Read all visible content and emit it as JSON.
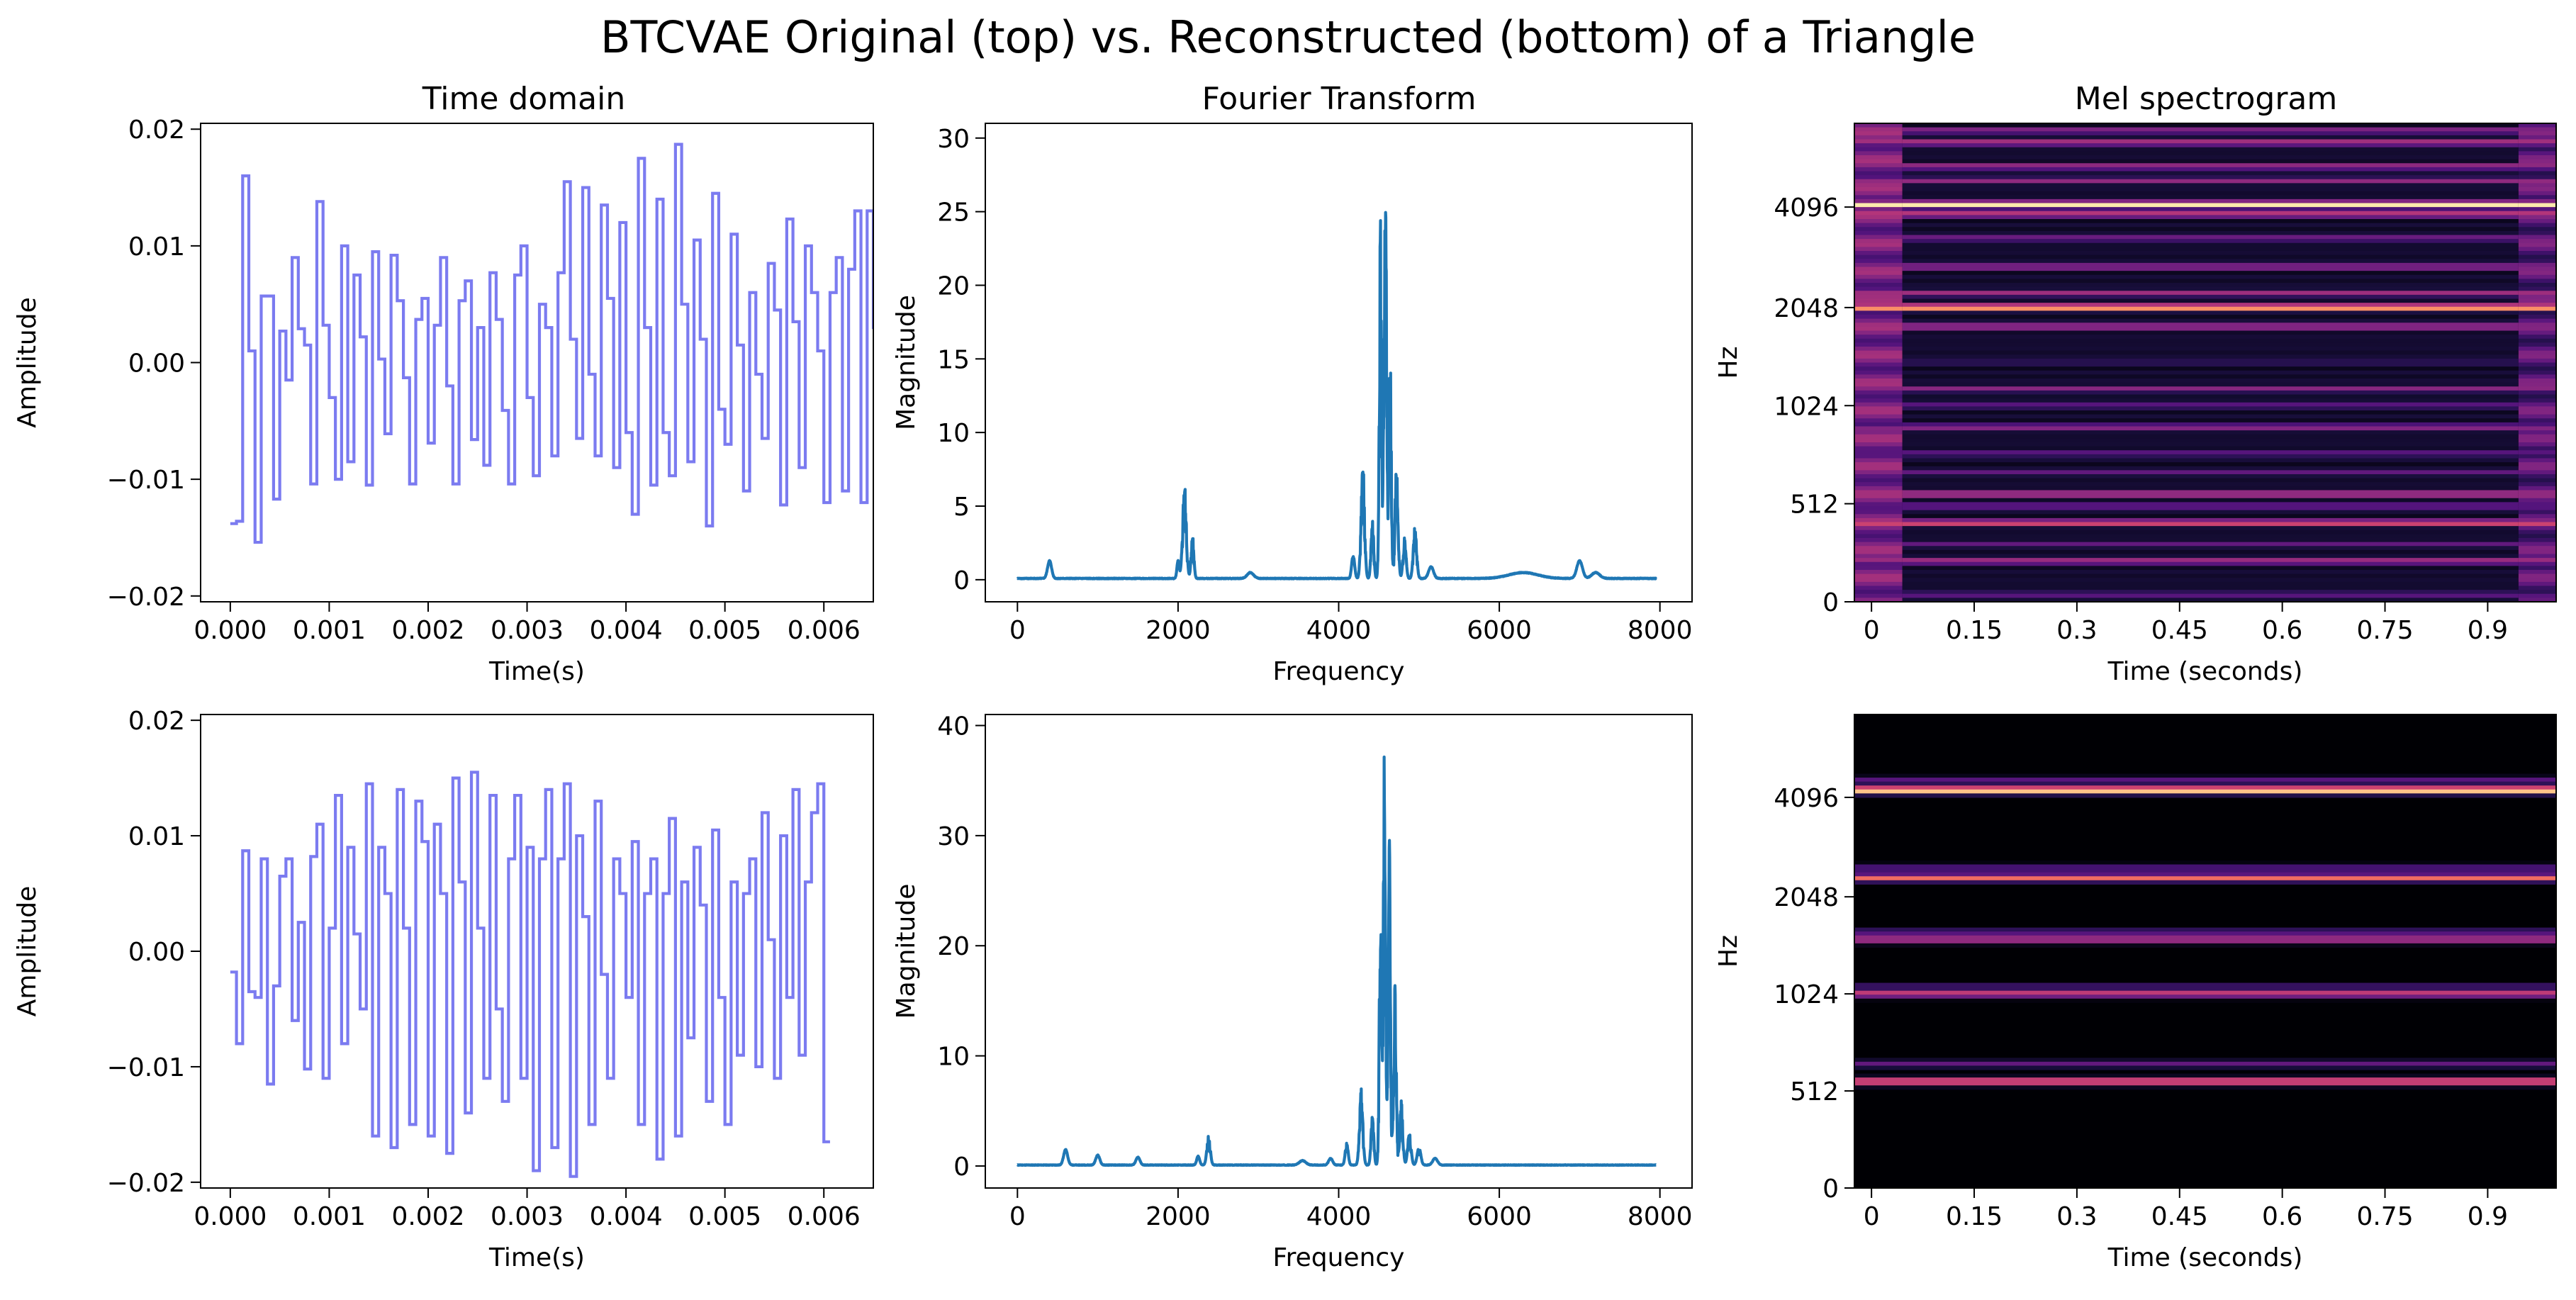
{
  "figure": {
    "suptitle": "BTCVAE Original (top) vs. Reconstructed (bottom) of a Triangle",
    "column_titles": [
      "Time domain",
      "Fourier Transform",
      "Mel spectrogram"
    ]
  },
  "chart_data": [
    {
      "type": "line",
      "role": "time-domain",
      "row": "original",
      "title": "Time domain",
      "xlabel": "Time(s)",
      "ylabel": "Amplitude",
      "xlim": [
        -0.0003,
        0.0065
      ],
      "ylim": [
        -0.0205,
        0.0205
      ],
      "xticks": [
        0.0,
        0.001,
        0.002,
        0.003,
        0.004,
        0.005,
        0.006
      ],
      "xtick_labels": [
        "0.000",
        "0.001",
        "0.002",
        "0.003",
        "0.004",
        "0.005",
        "0.006"
      ],
      "yticks": [
        -0.02,
        -0.01,
        0.0,
        0.01,
        0.02
      ],
      "ytick_labels": [
        "−0.02",
        "−0.01",
        "0.00",
        "0.01",
        "0.02"
      ],
      "color": "#7b7bf0",
      "drawstyle": "steps",
      "sample_rate": 16000,
      "y": [
        -0.0138,
        -0.0136,
        0.016,
        0.001,
        -0.0154,
        0.0057,
        0.0057,
        -0.0117,
        0.0027,
        -0.0015,
        0.009,
        0.0029,
        0.0015,
        -0.0104,
        0.0138,
        0.0032,
        -0.003,
        -0.01,
        0.01,
        -0.0085,
        0.0075,
        0.0022,
        -0.0105,
        0.0095,
        0.0003,
        -0.0061,
        0.0092,
        0.0053,
        -0.0013,
        -0.0104,
        0.0037,
        0.0055,
        -0.0069,
        0.0032,
        0.009,
        -0.002,
        -0.0104,
        0.0053,
        0.007,
        -0.0066,
        0.003,
        -0.0088,
        0.0077,
        0.0037,
        -0.0041,
        -0.0104,
        0.0075,
        0.01,
        -0.003,
        -0.0097,
        0.005,
        0.003,
        -0.008,
        0.0077,
        0.0155,
        0.002,
        -0.0065,
        0.015,
        -0.001,
        -0.008,
        0.0135,
        0.0055,
        -0.009,
        0.012,
        -0.006,
        -0.013,
        0.0175,
        0.003,
        -0.0105,
        0.014,
        -0.006,
        -0.0097,
        0.0187,
        0.005,
        -0.0085,
        0.0105,
        0.002,
        -0.014,
        0.0145,
        -0.004,
        -0.007,
        0.011,
        0.0015,
        -0.011,
        0.006,
        -0.001,
        -0.0065,
        0.0085,
        0.0045,
        -0.0122,
        0.0123,
        0.0035,
        -0.009,
        0.01,
        0.006,
        0.001,
        -0.012,
        0.006,
        0.009,
        -0.011,
        0.008,
        0.013,
        -0.012,
        0.013,
        0.003,
        -0.013,
        0.0065,
        0.0155
      ]
    },
    {
      "type": "line",
      "role": "fourier",
      "row": "original",
      "title": "Fourier Transform",
      "xlabel": "Frequency",
      "ylabel": "Magnitude",
      "xlim": [
        -400,
        8400
      ],
      "ylim": [
        -1.5,
        31
      ],
      "xticks": [
        0,
        2000,
        4000,
        6000,
        8000
      ],
      "xtick_labels": [
        "0",
        "2000",
        "4000",
        "6000",
        "8000"
      ],
      "yticks": [
        0,
        5,
        10,
        15,
        20,
        25,
        30
      ],
      "ytick_labels": [
        "0",
        "5",
        "10",
        "15",
        "20",
        "25",
        "30"
      ],
      "color": "#1f77b4",
      "x_max": 7950,
      "peaks": [
        [
          400,
          1.2,
          25
        ],
        [
          2080,
          6.6,
          22
        ],
        [
          2000,
          1.2,
          14
        ],
        [
          2180,
          3.0,
          16
        ],
        [
          2900,
          0.4,
          40
        ],
        [
          4180,
          1.6,
          18
        ],
        [
          4300,
          8.6,
          20
        ],
        [
          4420,
          4.2,
          16
        ],
        [
          4520,
          24.5,
          14
        ],
        [
          4580,
          29.3,
          16
        ],
        [
          4640,
          17.0,
          14
        ],
        [
          4720,
          8.0,
          18
        ],
        [
          4820,
          2.8,
          18
        ],
        [
          4950,
          3.6,
          20
        ],
        [
          5150,
          0.8,
          30
        ],
        [
          6300,
          0.4,
          180
        ],
        [
          7000,
          1.2,
          35
        ],
        [
          7200,
          0.4,
          50
        ]
      ]
    },
    {
      "type": "heatmap",
      "role": "mel",
      "row": "original",
      "title": "Mel spectrogram",
      "xlabel": "Time (seconds)",
      "ylabel": "Hz",
      "xlim": [
        -0.025,
        1.0
      ],
      "xticks": [
        0,
        0.15,
        0.3,
        0.45,
        0.6,
        0.75,
        0.9
      ],
      "xtick_labels": [
        "0",
        "0.15",
        "0.3",
        "0.45",
        "0.6",
        "0.75",
        "0.9"
      ],
      "yticks": [
        0,
        512,
        1024,
        2048,
        4096
      ],
      "ytick_labels": [
        "0",
        "512",
        "1024",
        "2048",
        "4096"
      ],
      "y_fraction_ticks": [
        0.0,
        0.205,
        0.41,
        0.615,
        0.825
      ],
      "colormap": "magma",
      "onset_edge": 0.045,
      "offset_edge": 0.945,
      "bands": [
        [
          0.015,
          0.3
        ],
        [
          0.085,
          0.48
        ],
        [
          0.12,
          0.3
        ],
        [
          0.165,
          0.62
        ],
        [
          0.2,
          0.35
        ],
        [
          0.225,
          0.55
        ],
        [
          0.27,
          0.3
        ],
        [
          0.31,
          0.3
        ],
        [
          0.365,
          0.42
        ],
        [
          0.41,
          0.3
        ],
        [
          0.445,
          0.4
        ],
        [
          0.5,
          0.2
        ],
        [
          0.575,
          0.5
        ],
        [
          0.615,
          0.85
        ],
        [
          0.645,
          0.45
        ],
        [
          0.7,
          0.45
        ],
        [
          0.76,
          0.35
        ],
        [
          0.81,
          0.55
        ],
        [
          0.83,
          0.97
        ],
        [
          0.88,
          0.42
        ],
        [
          0.91,
          0.45
        ],
        [
          0.96,
          0.5
        ],
        [
          0.985,
          0.4
        ]
      ]
    },
    {
      "type": "line",
      "role": "time-domain",
      "row": "reconstructed",
      "xlabel": "Time(s)",
      "ylabel": "Amplitude",
      "xlim": [
        -0.0003,
        0.0065
      ],
      "ylim": [
        -0.0205,
        0.0205
      ],
      "xticks": [
        0.0,
        0.001,
        0.002,
        0.003,
        0.004,
        0.005,
        0.006
      ],
      "xtick_labels": [
        "0.000",
        "0.001",
        "0.002",
        "0.003",
        "0.004",
        "0.005",
        "0.006"
      ],
      "yticks": [
        -0.02,
        -0.01,
        0.0,
        0.01,
        0.02
      ],
      "ytick_labels": [
        "−0.02",
        "−0.01",
        "0.00",
        "0.01",
        "0.02"
      ],
      "color": "#7b7bf0",
      "drawstyle": "steps",
      "sample_rate": 16000,
      "y": [
        -0.0018,
        -0.008,
        0.0087,
        -0.0035,
        -0.004,
        0.008,
        -0.0115,
        -0.003,
        0.0065,
        0.008,
        -0.006,
        0.0025,
        -0.0102,
        0.0082,
        0.011,
        -0.011,
        0.002,
        0.0135,
        -0.008,
        0.009,
        0.0015,
        -0.005,
        0.0145,
        -0.016,
        0.009,
        0.005,
        -0.017,
        0.014,
        0.002,
        -0.015,
        0.013,
        0.0095,
        -0.016,
        0.011,
        0.005,
        -0.0175,
        0.015,
        0.006,
        -0.014,
        0.0155,
        0.002,
        -0.011,
        0.0135,
        -0.005,
        -0.013,
        0.008,
        0.0135,
        -0.011,
        0.009,
        -0.019,
        0.008,
        0.014,
        -0.017,
        0.008,
        0.0145,
        -0.0195,
        0.01,
        0.003,
        -0.015,
        0.013,
        -0.002,
        -0.011,
        0.008,
        0.005,
        -0.004,
        0.0095,
        -0.015,
        0.005,
        0.008,
        -0.018,
        0.005,
        0.0115,
        -0.016,
        0.006,
        -0.0075,
        0.009,
        0.004,
        -0.013,
        0.0105,
        -0.004,
        -0.015,
        0.006,
        -0.009,
        0.005,
        0.008,
        -0.01,
        0.012,
        0.001,
        -0.011,
        0.01,
        -0.004,
        0.014,
        -0.009,
        0.006,
        0.012,
        0.0145,
        -0.0165
      ]
    },
    {
      "type": "line",
      "role": "fourier",
      "row": "reconstructed",
      "xlabel": "Frequency",
      "ylabel": "Magnitude",
      "xlim": [
        -400,
        8400
      ],
      "ylim": [
        -2,
        41
      ],
      "xticks": [
        0,
        2000,
        4000,
        6000,
        8000
      ],
      "xtick_labels": [
        "0",
        "2000",
        "4000",
        "6000",
        "8000"
      ],
      "yticks": [
        0,
        10,
        20,
        30,
        40
      ],
      "ytick_labels": [
        "0",
        "10",
        "20",
        "30",
        "40"
      ],
      "color": "#1f77b4",
      "x_max": 7950,
      "peaks": [
        [
          600,
          1.4,
          25
        ],
        [
          1000,
          0.9,
          25
        ],
        [
          1500,
          0.7,
          25
        ],
        [
          2250,
          0.8,
          18
        ],
        [
          2380,
          2.8,
          20
        ],
        [
          3550,
          0.4,
          40
        ],
        [
          3900,
          0.6,
          25
        ],
        [
          4100,
          2.0,
          18
        ],
        [
          4280,
          7.0,
          20
        ],
        [
          4420,
          5.0,
          16
        ],
        [
          4520,
          25.0,
          14
        ],
        [
          4570,
          38.5,
          14
        ],
        [
          4630,
          30.0,
          14
        ],
        [
          4700,
          17.0,
          16
        ],
        [
          4780,
          6.0,
          18
        ],
        [
          4880,
          3.0,
          20
        ],
        [
          5000,
          1.6,
          22
        ],
        [
          5200,
          0.6,
          30
        ]
      ]
    },
    {
      "type": "heatmap",
      "role": "mel",
      "row": "reconstructed",
      "xlabel": "Time (seconds)",
      "ylabel": "Hz",
      "xlim": [
        -0.025,
        1.0
      ],
      "xticks": [
        0,
        0.15,
        0.3,
        0.45,
        0.6,
        0.75,
        0.9
      ],
      "xtick_labels": [
        "0",
        "0.15",
        "0.3",
        "0.45",
        "0.6",
        "0.75",
        "0.9"
      ],
      "yticks": [
        0,
        512,
        1024,
        2048,
        4096
      ],
      "ytick_labels": [
        "0",
        "512",
        "1024",
        "2048",
        "4096"
      ],
      "y_fraction_ticks": [
        0.0,
        0.205,
        0.41,
        0.615,
        0.825
      ],
      "colormap": "magma",
      "onset_edge": 0.0,
      "offset_edge": 1.0,
      "bands": [
        [
          0.225,
          0.72
        ],
        [
          0.262,
          0.3
        ],
        [
          0.41,
          0.58
        ],
        [
          0.425,
          0.25
        ],
        [
          0.525,
          0.55
        ],
        [
          0.54,
          0.3
        ],
        [
          0.655,
          0.7
        ],
        [
          0.675,
          0.3
        ],
        [
          0.84,
          0.98
        ],
        [
          0.86,
          0.3
        ]
      ]
    }
  ]
}
